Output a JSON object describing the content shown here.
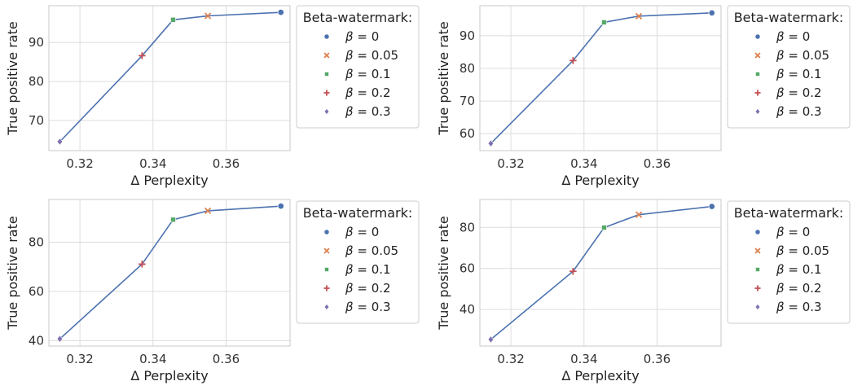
{
  "chart_data": [
    {
      "type": "line",
      "xlabel": "Δ Perplexity",
      "ylabel": "True positive rate",
      "xlim": [
        0.3115,
        0.3775
      ],
      "ylim": [
        62.3,
        99.4
      ],
      "xticks": [
        0.32,
        0.34,
        0.36
      ],
      "yticks": [
        70,
        80,
        90
      ],
      "grid": true,
      "legend": {
        "title": "Beta-watermark:",
        "position": "outside-right"
      },
      "series": [
        {
          "name": "β = 0",
          "beta": "0",
          "marker": "circle",
          "color": "#4c72b0",
          "x": [
            0.375
          ],
          "y": [
            97.7
          ]
        },
        {
          "name": "β = 0.05",
          "beta": "0.05",
          "marker": "x",
          "color": "#dd8452",
          "x": [
            0.355
          ],
          "y": [
            96.8
          ]
        },
        {
          "name": "β = 0.1",
          "beta": "0.1",
          "marker": "square",
          "color": "#55a868",
          "x": [
            0.3455
          ],
          "y": [
            95.8
          ]
        },
        {
          "name": "β = 0.2",
          "beta": "0.2",
          "marker": "plus",
          "color": "#c44e52",
          "x": [
            0.337
          ],
          "y": [
            86.6
          ]
        },
        {
          "name": "β = 0.3",
          "beta": "0.3",
          "marker": "diamond",
          "color": "#8172b3",
          "x": [
            0.3145
          ],
          "y": [
            64.6
          ]
        }
      ]
    },
    {
      "type": "line",
      "xlabel": "Δ Perplexity",
      "ylabel": "True positive rate",
      "xlim": [
        0.3115,
        0.3775
      ],
      "ylim": [
        54.8,
        99.2
      ],
      "xticks": [
        0.32,
        0.34,
        0.36
      ],
      "yticks": [
        60,
        70,
        80,
        90
      ],
      "grid": true,
      "legend": {
        "title": "Beta-watermark:",
        "position": "outside-right"
      },
      "series": [
        {
          "name": "β = 0",
          "beta": "0",
          "marker": "circle",
          "color": "#4c72b0",
          "x": [
            0.375
          ],
          "y": [
            97.0
          ]
        },
        {
          "name": "β = 0.05",
          "beta": "0.05",
          "marker": "x",
          "color": "#dd8452",
          "x": [
            0.355
          ],
          "y": [
            96.0
          ]
        },
        {
          "name": "β = 0.1",
          "beta": "0.1",
          "marker": "square",
          "color": "#55a868",
          "x": [
            0.3455
          ],
          "y": [
            94.1
          ]
        },
        {
          "name": "β = 0.2",
          "beta": "0.2",
          "marker": "plus",
          "color": "#c44e52",
          "x": [
            0.337
          ],
          "y": [
            82.4
          ]
        },
        {
          "name": "β = 0.3",
          "beta": "0.3",
          "marker": "diamond",
          "color": "#8172b3",
          "x": [
            0.3145
          ],
          "y": [
            57.0
          ]
        }
      ]
    },
    {
      "type": "line",
      "xlabel": "Δ Perplexity",
      "ylabel": "True positive rate",
      "xlim": [
        0.3115,
        0.3775
      ],
      "ylim": [
        37.8,
        97.4
      ],
      "xticks": [
        0.32,
        0.34,
        0.36
      ],
      "yticks": [
        40,
        60,
        80
      ],
      "grid": true,
      "legend": {
        "title": "Beta-watermark:",
        "position": "outside-right"
      },
      "series": [
        {
          "name": "β = 0",
          "beta": "0",
          "marker": "circle",
          "color": "#4c72b0",
          "x": [
            0.375
          ],
          "y": [
            94.7
          ]
        },
        {
          "name": "β = 0.05",
          "beta": "0.05",
          "marker": "x",
          "color": "#dd8452",
          "x": [
            0.355
          ],
          "y": [
            92.8
          ]
        },
        {
          "name": "β = 0.1",
          "beta": "0.1",
          "marker": "square",
          "color": "#55a868",
          "x": [
            0.3455
          ],
          "y": [
            89.2
          ]
        },
        {
          "name": "β = 0.2",
          "beta": "0.2",
          "marker": "plus",
          "color": "#c44e52",
          "x": [
            0.337
          ],
          "y": [
            71.1
          ]
        },
        {
          "name": "β = 0.3",
          "beta": "0.3",
          "marker": "diamond",
          "color": "#8172b3",
          "x": [
            0.3145
          ],
          "y": [
            40.7
          ]
        }
      ]
    },
    {
      "type": "line",
      "xlabel": "Δ Perplexity",
      "ylabel": "True positive rate",
      "xlim": [
        0.3115,
        0.3775
      ],
      "ylim": [
        22.2,
        93.6
      ],
      "xticks": [
        0.32,
        0.34,
        0.36
      ],
      "yticks": [
        40,
        60,
        80
      ],
      "grid": true,
      "legend": {
        "title": "Beta-watermark:",
        "position": "outside-right"
      },
      "series": [
        {
          "name": "β = 0",
          "beta": "0",
          "marker": "circle",
          "color": "#4c72b0",
          "x": [
            0.375
          ],
          "y": [
            90.2
          ]
        },
        {
          "name": "β = 0.05",
          "beta": "0.05",
          "marker": "x",
          "color": "#dd8452",
          "x": [
            0.355
          ],
          "y": [
            86.2
          ]
        },
        {
          "name": "β = 0.1",
          "beta": "0.1",
          "marker": "square",
          "color": "#55a868",
          "x": [
            0.3455
          ],
          "y": [
            79.9
          ]
        },
        {
          "name": "β = 0.2",
          "beta": "0.2",
          "marker": "plus",
          "color": "#c44e52",
          "x": [
            0.337
          ],
          "y": [
            58.6
          ]
        },
        {
          "name": "β = 0.3",
          "beta": "0.3",
          "marker": "diamond",
          "color": "#8172b3",
          "x": [
            0.3145
          ],
          "y": [
            25.4
          ]
        }
      ]
    }
  ]
}
